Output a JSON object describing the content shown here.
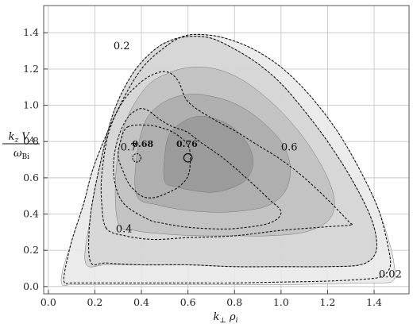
{
  "chart_data": {
    "type": "contour",
    "title": "",
    "xlabel": "k⊥ρi",
    "ylabel": "kz VA / ωBi",
    "xlim": [
      -0.02,
      1.55
    ],
    "ylim": [
      -0.04,
      1.55
    ],
    "x_ticks": [
      "0.0",
      "0.2",
      "0.4",
      "0.6",
      "0.8",
      "1.0",
      "1.2",
      "1.4"
    ],
    "y_ticks": [
      "0.0",
      "0.2",
      "0.4",
      "0.6",
      "0.8",
      "1.0",
      "1.2",
      "1.4"
    ],
    "grid": true,
    "filled_levels": [
      {
        "level": "0.02",
        "fill": "#e8e8e8",
        "x": [
          0.06,
          0.06,
          0.1,
          0.15,
          0.2,
          0.3,
          0.4,
          0.5,
          0.58,
          0.66,
          0.76,
          0.88,
          1.0,
          1.12,
          1.24,
          1.34,
          1.42,
          1.47,
          1.49,
          1.48,
          1.44,
          1.36,
          1.2,
          1.0,
          0.8,
          0.6,
          0.4,
          0.2,
          0.1
        ],
        "y": [
          0.01,
          0.08,
          0.25,
          0.45,
          0.68,
          0.98,
          1.2,
          1.32,
          1.38,
          1.39,
          1.37,
          1.31,
          1.21,
          1.06,
          0.86,
          0.64,
          0.42,
          0.22,
          0.08,
          0.03,
          0.02,
          0.02,
          0.015,
          0.01,
          0.01,
          0.01,
          0.01,
          0.01,
          0.01
        ]
      },
      {
        "level": "0.2",
        "fill": "#d4d4d4",
        "x": [
          0.16,
          0.18,
          0.22,
          0.28,
          0.36,
          0.45,
          0.53,
          0.61,
          0.7,
          0.8,
          0.9,
          1.0,
          1.1,
          1.2,
          1.3,
          1.38,
          1.41,
          1.4,
          1.34,
          1.2,
          1.0,
          0.8,
          0.6,
          0.4,
          0.25
        ],
        "y": [
          0.13,
          0.38,
          0.66,
          0.96,
          1.17,
          1.3,
          1.36,
          1.38,
          1.37,
          1.31,
          1.23,
          1.12,
          0.97,
          0.8,
          0.6,
          0.4,
          0.26,
          0.17,
          0.12,
          0.11,
          0.11,
          0.11,
          0.12,
          0.12,
          0.12
        ]
      },
      {
        "level": "0.4",
        "fill": "#c0c0c0",
        "x": [
          0.3,
          0.29,
          0.33,
          0.42,
          0.52,
          0.62,
          0.72,
          0.82,
          0.92,
          1.02,
          1.12,
          1.2,
          1.23,
          1.2,
          1.1,
          0.95,
          0.8,
          0.65,
          0.5,
          0.37
        ],
        "y": [
          0.35,
          0.62,
          0.9,
          1.1,
          1.18,
          1.21,
          1.2,
          1.15,
          1.06,
          0.94,
          0.78,
          0.6,
          0.46,
          0.36,
          0.3,
          0.28,
          0.28,
          0.28,
          0.29,
          0.31
        ]
      },
      {
        "level": "0.6",
        "fill": "#acacac",
        "x": [
          0.38,
          0.38,
          0.42,
          0.5,
          0.6,
          0.7,
          0.8,
          0.9,
          1.0,
          1.04,
          1.02,
          0.95,
          0.85,
          0.73,
          0.6,
          0.47
        ],
        "y": [
          0.5,
          0.72,
          0.92,
          1.02,
          1.06,
          1.05,
          1.01,
          0.93,
          0.8,
          0.66,
          0.53,
          0.45,
          0.42,
          0.41,
          0.42,
          0.45
        ]
      },
      {
        "level": "0.7",
        "fill": "#989898",
        "x": [
          0.5,
          0.5,
          0.52,
          0.58,
          0.65,
          0.73,
          0.8,
          0.86,
          0.88,
          0.85,
          0.78,
          0.7,
          0.62,
          0.55
        ],
        "y": [
          0.58,
          0.72,
          0.84,
          0.91,
          0.94,
          0.92,
          0.87,
          0.78,
          0.68,
          0.59,
          0.54,
          0.52,
          0.53,
          0.55
        ]
      }
    ],
    "dashed_contours": [
      {
        "level": "0.02",
        "x": [
          0.07,
          0.07,
          0.1,
          0.15,
          0.2,
          0.3,
          0.4,
          0.5,
          0.58,
          0.66,
          0.76,
          0.88,
          1.0,
          1.12,
          1.24,
          1.34,
          1.42,
          1.46,
          1.47,
          1.45,
          1.42,
          1.35,
          1.2,
          1.0,
          0.8,
          0.6,
          0.4,
          0.2,
          0.1
        ],
        "y": [
          0.02,
          0.08,
          0.25,
          0.45,
          0.68,
          0.98,
          1.2,
          1.32,
          1.38,
          1.39,
          1.37,
          1.31,
          1.21,
          1.06,
          0.86,
          0.64,
          0.42,
          0.22,
          0.12,
          0.07,
          0.05,
          0.04,
          0.03,
          0.025,
          0.02,
          0.02,
          0.02,
          0.02,
          0.02
        ]
      },
      {
        "level": "0.2",
        "x": [
          0.18,
          0.18,
          0.22,
          0.28,
          0.36,
          0.45,
          0.53,
          0.61,
          0.7,
          0.8,
          0.9,
          1.0,
          1.1,
          1.2,
          1.3,
          1.38,
          1.41,
          1.4,
          1.34,
          1.2,
          1.0,
          0.8,
          0.6,
          0.4,
          0.25
        ],
        "y": [
          0.14,
          0.38,
          0.66,
          0.96,
          1.17,
          1.3,
          1.36,
          1.38,
          1.37,
          1.31,
          1.23,
          1.12,
          0.97,
          0.8,
          0.6,
          0.4,
          0.26,
          0.17,
          0.12,
          0.11,
          0.11,
          0.11,
          0.12,
          0.12,
          0.13
        ]
      },
      {
        "level": "0.4",
        "x": [
          0.25,
          0.23,
          0.23,
          0.26,
          0.32,
          0.4,
          0.47,
          0.52,
          0.56,
          0.6,
          0.7,
          0.8,
          0.9,
          1.0,
          1.1,
          1.2,
          1.29,
          1.3,
          1.2,
          1.0,
          0.8,
          0.6,
          0.45,
          0.33
        ],
        "y": [
          0.32,
          0.45,
          0.62,
          0.85,
          1.02,
          1.13,
          1.18,
          1.18,
          1.13,
          1.02,
          0.93,
          0.86,
          0.78,
          0.7,
          0.6,
          0.48,
          0.36,
          0.34,
          0.33,
          0.31,
          0.28,
          0.27,
          0.26,
          0.28
        ]
      },
      {
        "level": "0.6",
        "x": [
          0.43,
          0.33,
          0.29,
          0.28,
          0.3,
          0.34,
          0.39,
          0.43,
          0.47,
          0.52,
          0.56,
          0.6,
          0.65,
          0.75,
          0.85,
          0.95,
          1.0,
          0.95,
          0.8,
          0.68,
          0.58,
          0.49
        ],
        "y": [
          0.37,
          0.45,
          0.55,
          0.68,
          0.82,
          0.93,
          0.98,
          0.97,
          0.93,
          0.89,
          0.87,
          0.85,
          0.8,
          0.71,
          0.6,
          0.48,
          0.41,
          0.35,
          0.32,
          0.32,
          0.33,
          0.35
        ]
      },
      {
        "level": "0.7",
        "x": [
          0.34,
          0.43,
          0.5,
          0.55,
          0.6,
          0.61,
          0.6,
          0.56,
          0.5,
          0.45,
          0.4,
          0.35,
          0.32,
          0.3,
          0.31
        ],
        "y": [
          0.88,
          0.89,
          0.87,
          0.84,
          0.78,
          0.7,
          0.61,
          0.55,
          0.51,
          0.49,
          0.5,
          0.56,
          0.64,
          0.72,
          0.8
        ]
      }
    ],
    "markers": [
      {
        "label": "0.68",
        "x": 0.38,
        "y": 0.71,
        "rx": 0.018,
        "ry": 0.023,
        "dashed": true
      },
      {
        "label": "0.76",
        "x": 0.6,
        "y": 0.71,
        "rx": 0.018,
        "ry": 0.023,
        "dashed": false
      }
    ],
    "annotations": [
      {
        "text": "0.2",
        "x": 0.28,
        "y": 1.31
      },
      {
        "text": "0.7",
        "x": 0.31,
        "y": 0.75
      },
      {
        "text": "0.68",
        "x": 0.36,
        "y": 0.77,
        "bold": true
      },
      {
        "text": "0.76",
        "x": 0.55,
        "y": 0.77,
        "bold": true
      },
      {
        "text": "0.6",
        "x": 1.0,
        "y": 0.75
      },
      {
        "text": "0.4",
        "x": 0.29,
        "y": 0.3
      },
      {
        "text": "0.02",
        "x": 1.42,
        "y": 0.05
      }
    ]
  }
}
